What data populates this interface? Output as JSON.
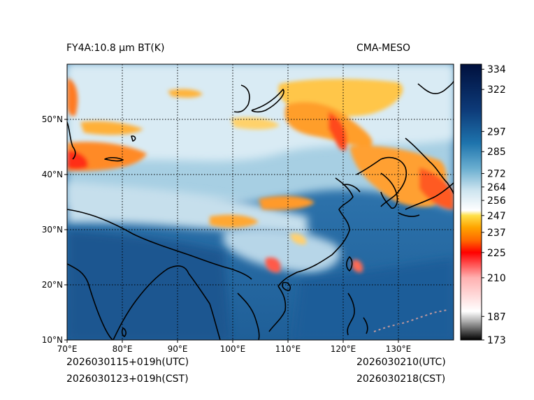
{
  "title_left": "FY4A:10.8 µm BT(K)",
  "title_right": "CMA-MESO",
  "footer": {
    "init_utc": "2026030115+019h(UTC)",
    "init_cst": "2026030123+019h(CST)",
    "valid_utc": "2026030210(UTC)",
    "valid_cst": "2026030218(CST)"
  },
  "chart_data": {
    "type": "heatmap",
    "variable": "FY4A 10.8 µm brightness temperature",
    "units": "K",
    "x_range": [
      70,
      140
    ],
    "y_range": [
      10,
      60
    ],
    "x_ticks": [
      70,
      80,
      90,
      100,
      110,
      120,
      130
    ],
    "x_tick_labels": [
      "70°E",
      "80°E",
      "90°E",
      "100°E",
      "110°E",
      "120°E",
      "130°E"
    ],
    "y_ticks": [
      10,
      20,
      30,
      40,
      50
    ],
    "y_tick_labels": [
      "10°N",
      "20°N",
      "30°N",
      "40°N",
      "50°N"
    ],
    "colorbar": {
      "min": 173,
      "max": 337,
      "ticks": [
        173,
        187,
        210,
        225,
        237,
        247,
        256,
        264,
        272,
        285,
        297,
        322,
        334
      ],
      "tick_labels": [
        "173",
        "187",
        "210",
        "225",
        "237",
        "247",
        "256",
        "264",
        "272",
        "285",
        "297",
        "322",
        "334"
      ],
      "stops": [
        {
          "value": 173,
          "color": "#000000"
        },
        {
          "value": 185,
          "color": "#bbbbbb"
        },
        {
          "value": 190,
          "color": "#ffffff"
        },
        {
          "value": 210,
          "color": "#ffb0b0"
        },
        {
          "value": 225,
          "color": "#ff0000"
        },
        {
          "value": 232,
          "color": "#ff6600"
        },
        {
          "value": 240,
          "color": "#ffa500"
        },
        {
          "value": 247,
          "color": "#ffe04a"
        },
        {
          "value": 250,
          "color": "#ffffff"
        },
        {
          "value": 262,
          "color": "#cde4ef"
        },
        {
          "value": 275,
          "color": "#6aaed0"
        },
        {
          "value": 290,
          "color": "#1e74ad"
        },
        {
          "value": 310,
          "color": "#0d3a78"
        },
        {
          "value": 337,
          "color": "#00103d"
        }
      ]
    }
  }
}
